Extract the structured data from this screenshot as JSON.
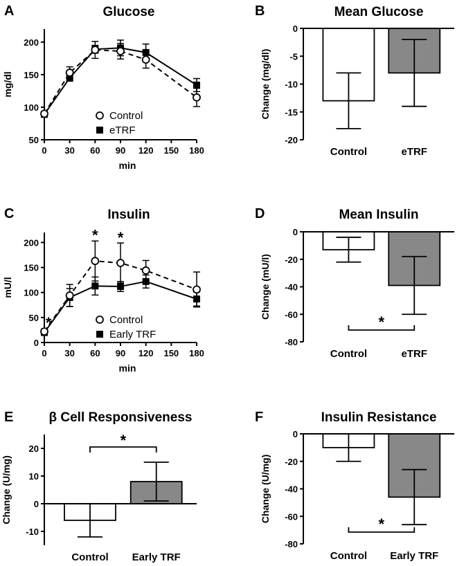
{
  "colors": {
    "control_fill": "#ffffff",
    "trf_fill": "#888888",
    "line": "#000000"
  },
  "chart_data": [
    {
      "id": "A",
      "letter": "A",
      "type": "line",
      "title": "Glucose",
      "xlabel": "min",
      "ylabel": "mg/dl",
      "xlim": [
        0,
        180
      ],
      "ylim": [
        50,
        220
      ],
      "xticks": [
        0,
        30,
        60,
        90,
        120,
        150,
        180
      ],
      "yticks": [
        50,
        100,
        150,
        200
      ],
      "series": [
        {
          "name": "Control",
          "marker": "open-circle",
          "dashed": true,
          "x": [
            0,
            30,
            60,
            90,
            120,
            180
          ],
          "y": [
            90,
            153,
            188,
            186,
            173,
            115
          ],
          "err": [
            3,
            9,
            13,
            12,
            13,
            14
          ]
        },
        {
          "name": "eTRF",
          "marker": "filled-square",
          "dashed": false,
          "x": [
            0,
            30,
            60,
            90,
            120,
            180
          ],
          "y": [
            89,
            145,
            189,
            191,
            184,
            134
          ],
          "err": [
            3,
            5,
            6,
            12,
            13,
            10
          ]
        }
      ],
      "annotations": [],
      "legend": [
        "Control",
        "eTRF"
      ]
    },
    {
      "id": "B",
      "letter": "B",
      "type": "bar",
      "title": "Mean Glucose",
      "ylabel": "Change (mg/dl)",
      "categories": [
        "Control",
        "eTRF"
      ],
      "values": [
        -13,
        -8
      ],
      "err": [
        5,
        6
      ],
      "ylim": [
        -20,
        0
      ],
      "yticks": [
        0,
        -5,
        -10,
        -15,
        -20
      ],
      "significance": null
    },
    {
      "id": "C",
      "letter": "C",
      "type": "line",
      "title": "Insulin",
      "xlabel": "min",
      "ylabel": "mU/l",
      "xlim": [
        0,
        180
      ],
      "ylim": [
        0,
        220
      ],
      "xticks": [
        0,
        30,
        60,
        90,
        120,
        150,
        180
      ],
      "yticks": [
        0,
        50,
        100,
        150,
        200
      ],
      "series": [
        {
          "name": "Control",
          "marker": "open-circle",
          "dashed": true,
          "x": [
            0,
            30,
            60,
            90,
            120,
            180
          ],
          "y": [
            22,
            94,
            163,
            159,
            144,
            106
          ],
          "err": [
            5,
            22,
            40,
            40,
            20,
            35
          ]
        },
        {
          "name": "Early TRF",
          "marker": "filled-square",
          "dashed": false,
          "x": [
            0,
            30,
            60,
            90,
            120,
            180
          ],
          "y": [
            20,
            90,
            113,
            112,
            122,
            87
          ],
          "err": [
            5,
            18,
            18,
            10,
            13,
            14
          ]
        }
      ],
      "annotations": [
        {
          "x": 5,
          "y": 40,
          "text": "*"
        },
        {
          "x": 60,
          "y": 215,
          "text": "*"
        },
        {
          "x": 90,
          "y": 210,
          "text": "*"
        }
      ],
      "legend": [
        "Control",
        "Early TRF"
      ]
    },
    {
      "id": "D",
      "letter": "D",
      "type": "bar",
      "title": "Mean Insulin",
      "ylabel": "Change (mU/l)",
      "categories": [
        "Control",
        "eTRF"
      ],
      "values": [
        -13,
        -39
      ],
      "err": [
        9,
        21
      ],
      "ylim": [
        -80,
        0
      ],
      "yticks": [
        0,
        -20,
        -40,
        -60,
        -80
      ],
      "significance": {
        "text": "*",
        "position": "below"
      }
    },
    {
      "id": "E",
      "letter": "E",
      "type": "bar",
      "title": "β Cell Responsiveness",
      "ylabel": "Change (U/mg)",
      "categories": [
        "Control",
        "Early TRF"
      ],
      "values": [
        -6,
        8
      ],
      "err": [
        6,
        7
      ],
      "ylim": [
        -15,
        25
      ],
      "yticks": [
        20,
        10,
        0,
        -10
      ],
      "significance": {
        "text": "*",
        "position": "above"
      }
    },
    {
      "id": "F",
      "letter": "F",
      "type": "bar",
      "title": "Insulin Resistance",
      "ylabel": "Change (U/mg)",
      "categories": [
        "Control",
        "Early TRF"
      ],
      "values": [
        -10,
        -46
      ],
      "err": [
        10,
        20
      ],
      "ylim": [
        -80,
        0
      ],
      "yticks": [
        0,
        -20,
        -40,
        -60,
        -80
      ],
      "significance": {
        "text": "*",
        "position": "below"
      }
    }
  ]
}
